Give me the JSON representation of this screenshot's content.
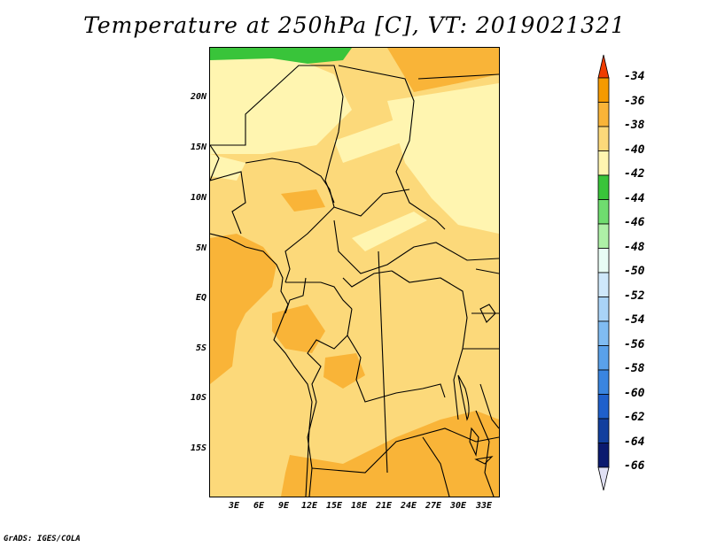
{
  "title": "Temperature at 250hPa [C], VT: 2019021321",
  "credit": "GrADS: IGES/COLA",
  "map": {
    "lat_labels": [
      "20N",
      "15N",
      "10N",
      "5N",
      "EQ",
      "5S",
      "10S",
      "15S"
    ],
    "lon_labels": [
      "3E",
      "6E",
      "9E",
      "12E",
      "15E",
      "18E",
      "21E",
      "24E",
      "27E",
      "30E",
      "33E"
    ]
  },
  "colorbar": {
    "labels": [
      "-34",
      "-36",
      "-38",
      "-40",
      "-42",
      "-44",
      "-46",
      "-48",
      "-50",
      "-52",
      "-54",
      "-56",
      "-58",
      "-60",
      "-62",
      "-64",
      "-66"
    ],
    "colors": [
      "#f07000",
      "#f59a00",
      "#f9b438",
      "#fcd97a",
      "#fff5b0",
      "#39c43a",
      "#6fdc6f",
      "#aef0a7",
      "#e8fdf5",
      "#cfe8fb",
      "#a9d3f7",
      "#80bcf2",
      "#5aa1ea",
      "#3a85e0",
      "#1f60cc",
      "#123f9e",
      "#0b1a6f"
    ],
    "top_arrow_color": "#f03c00",
    "bottom_arrow_color": "#e0e0f4"
  },
  "field_colors": {
    "level_38": "#f9b438",
    "level_40": "#fcd97a",
    "level_42": "#fff5b0",
    "level_44": "#39c43a"
  }
}
